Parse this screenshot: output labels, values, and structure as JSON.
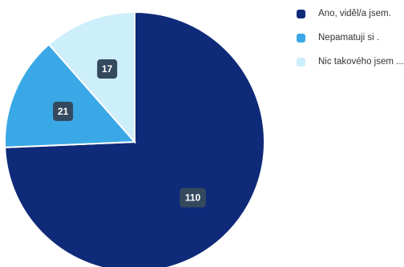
{
  "chart_data": {
    "type": "pie",
    "categories": [
      "Ano, viděl/a jsem.",
      "Nepamatuji si .",
      "Nic takového jsem ..."
    ],
    "values": [
      110,
      21,
      17
    ],
    "colors": [
      "#0f2a78",
      "#3aa8e6",
      "#cdeefb"
    ],
    "label_box_color": "#34495e",
    "start_angle_deg": 0,
    "direction": "clockwise",
    "legend_position": "right",
    "title": ""
  }
}
